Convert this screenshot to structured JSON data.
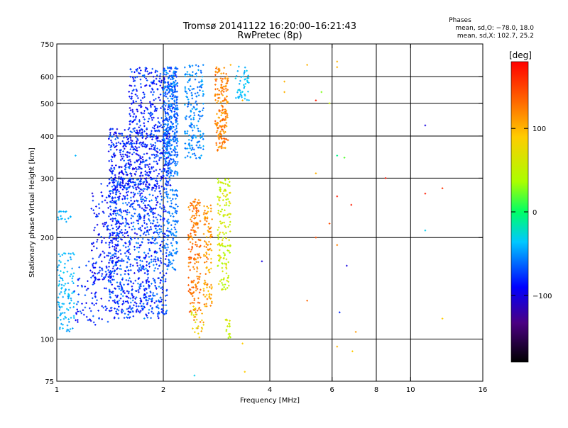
{
  "chart_data": {
    "type": "scatter",
    "title": "Tromsø 20141122 16:20:00–16:21:43",
    "subtitle": "RwPretec (8p)",
    "info": {
      "heading": "Phases",
      "line1": "mean, sd,O: −78.0, 18.0",
      "line2": "mean, sd,X: 102.7, 25.2"
    },
    "xlabel": "Frequency [MHz]",
    "ylabel": "Stationary phase Virtual Height [km]",
    "x_scale": "log",
    "y_scale": "log",
    "xlim": [
      1,
      16
    ],
    "ylim": [
      75,
      750
    ],
    "x_ticks": [
      1,
      2,
      4,
      6,
      8,
      10,
      16
    ],
    "x_tick_labels": [
      "1",
      "2",
      "4",
      "6",
      "8",
      "10",
      "16"
    ],
    "x_grid": [
      2,
      4,
      6,
      8,
      10
    ],
    "y_ticks": [
      75,
      100,
      200,
      300,
      400,
      500,
      600,
      750
    ],
    "y_tick_labels": [
      "75",
      "100",
      "200",
      "300",
      "400",
      "500",
      "600",
      "750"
    ],
    "y_grid": [
      100,
      200,
      300,
      400,
      500,
      600
    ],
    "grid": true,
    "colorbar": {
      "label": "[deg]",
      "range": [
        -180,
        180
      ],
      "ticks": [
        100,
        0,
        -100
      ],
      "tick_labels": [
        "100",
        "0",
        "−100"
      ],
      "colormap": "rainbow"
    },
    "clusters": [
      {
        "f": [
          1.0,
          1.12
        ],
        "h": [
          105,
          180
        ],
        "phase": [
          -60,
          -40
        ],
        "n": 110
      },
      {
        "f": [
          1.0,
          1.1
        ],
        "h": [
          220,
          240
        ],
        "phase": [
          -55,
          -45
        ],
        "n": 18
      },
      {
        "f": [
          1.12,
          1.4
        ],
        "h": [
          110,
          170
        ],
        "phase": [
          -110,
          -70
        ],
        "n": 90
      },
      {
        "f": [
          1.25,
          1.5
        ],
        "h": [
          150,
          290
        ],
        "phase": [
          -115,
          -75
        ],
        "n": 160
      },
      {
        "f": [
          1.4,
          2.05
        ],
        "h": [
          115,
          300
        ],
        "phase": [
          -110,
          -60
        ],
        "n": 900
      },
      {
        "f": [
          1.4,
          2.1
        ],
        "h": [
          280,
          420
        ],
        "phase": [
          -115,
          -70
        ],
        "n": 520
      },
      {
        "f": [
          1.6,
          2.2
        ],
        "h": [
          420,
          640
        ],
        "phase": [
          -110,
          -70
        ],
        "n": 260
      },
      {
        "f": [
          2.0,
          2.2
        ],
        "h": [
          300,
          640
        ],
        "phase": [
          -85,
          -55
        ],
        "n": 320
      },
      {
        "f": [
          2.05,
          2.2
        ],
        "h": [
          160,
          280
        ],
        "phase": [
          -80,
          -55
        ],
        "n": 110
      },
      {
        "f": [
          2.3,
          2.6
        ],
        "h": [
          340,
          650
        ],
        "phase": [
          -75,
          -50
        ],
        "n": 180
      },
      {
        "f": [
          2.35,
          2.55
        ],
        "h": [
          120,
          260
        ],
        "phase": [
          120,
          150
        ],
        "n": 170
      },
      {
        "f": [
          2.6,
          2.75
        ],
        "h": [
          125,
          250
        ],
        "phase": [
          100,
          140
        ],
        "n": 110
      },
      {
        "f": [
          2.8,
          3.05
        ],
        "h": [
          360,
          640
        ],
        "phase": [
          110,
          150
        ],
        "n": 180
      },
      {
        "f": [
          2.85,
          3.1
        ],
        "h": [
          140,
          300
        ],
        "phase": [
          40,
          90
        ],
        "n": 150
      },
      {
        "f": [
          2.4,
          2.6
        ],
        "h": [
          100,
          125
        ],
        "phase": [
          50,
          140
        ],
        "n": 30
      },
      {
        "f": [
          3.0,
          3.1
        ],
        "h": [
          100,
          115
        ],
        "phase": [
          30,
          80
        ],
        "n": 18
      },
      {
        "f": [
          3.2,
          3.5
        ],
        "h": [
          510,
          650
        ],
        "phase": [
          -55,
          -35
        ],
        "n": 45
      }
    ],
    "scattered_points": [
      {
        "f": 1.13,
        "h": 350,
        "phase": -50
      },
      {
        "f": 2.45,
        "h": 78,
        "phase": -40
      },
      {
        "f": 3.35,
        "h": 97,
        "phase": 100
      },
      {
        "f": 3.4,
        "h": 80,
        "phase": 100
      },
      {
        "f": 3.1,
        "h": 650,
        "phase": 110
      },
      {
        "f": 3.35,
        "h": 510,
        "phase": 110
      },
      {
        "f": 3.8,
        "h": 170,
        "phase": -110
      },
      {
        "f": 4.4,
        "h": 580,
        "phase": 110
      },
      {
        "f": 4.4,
        "h": 540,
        "phase": 110
      },
      {
        "f": 5.1,
        "h": 650,
        "phase": 110
      },
      {
        "f": 5.1,
        "h": 130,
        "phase": 140
      },
      {
        "f": 5.4,
        "h": 510,
        "phase": 170
      },
      {
        "f": 5.4,
        "h": 310,
        "phase": 110
      },
      {
        "f": 5.4,
        "h": 200,
        "phase": 150
      },
      {
        "f": 5.6,
        "h": 540,
        "phase": 30
      },
      {
        "f": 5.9,
        "h": 500,
        "phase": 60
      },
      {
        "f": 5.9,
        "h": 220,
        "phase": 150
      },
      {
        "f": 6.2,
        "h": 665,
        "phase": 110
      },
      {
        "f": 6.2,
        "h": 640,
        "phase": 110
      },
      {
        "f": 6.2,
        "h": 350,
        "phase": -10
      },
      {
        "f": 6.2,
        "h": 265,
        "phase": 170
      },
      {
        "f": 6.2,
        "h": 190,
        "phase": 130
      },
      {
        "f": 6.2,
        "h": 95,
        "phase": 110
      },
      {
        "f": 6.3,
        "h": 120,
        "phase": -90
      },
      {
        "f": 6.5,
        "h": 345,
        "phase": 20
      },
      {
        "f": 6.6,
        "h": 165,
        "phase": -110
      },
      {
        "f": 6.8,
        "h": 250,
        "phase": 170
      },
      {
        "f": 6.85,
        "h": 92,
        "phase": 100
      },
      {
        "f": 7.0,
        "h": 105,
        "phase": 120
      },
      {
        "f": 8.5,
        "h": 300,
        "phase": 170
      },
      {
        "f": 11.0,
        "h": 430,
        "phase": -110
      },
      {
        "f": 11.0,
        "h": 270,
        "phase": 170
      },
      {
        "f": 11.0,
        "h": 210,
        "phase": -40
      },
      {
        "f": 12.3,
        "h": 280,
        "phase": 160
      },
      {
        "f": 12.3,
        "h": 115,
        "phase": 100
      }
    ]
  }
}
